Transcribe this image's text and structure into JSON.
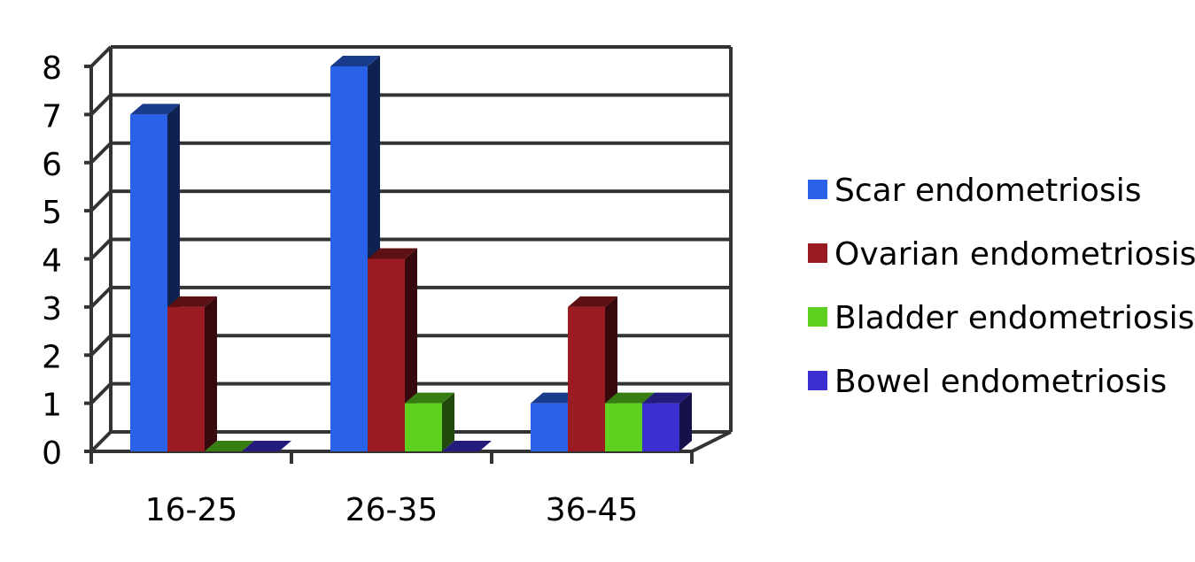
{
  "chart_data": {
    "type": "bar3d",
    "categories": [
      "16-25",
      "26-35",
      "36-45"
    ],
    "series": [
      {
        "name": "Scar endometriosis",
        "color": "#2962e8",
        "values": [
          7,
          8,
          1
        ]
      },
      {
        "name": "Ovarian endometriosis",
        "color": "#9b1b22",
        "values": [
          3,
          4,
          3
        ]
      },
      {
        "name": "Bladder endometriosis",
        "color": "#5ed020",
        "values": [
          0,
          1,
          1
        ]
      },
      {
        "name": "Bowel endometriosis",
        "color": "#3b2fd0",
        "values": [
          0,
          0,
          1
        ]
      }
    ],
    "ylim": [
      0,
      8
    ],
    "yticks": [
      0,
      1,
      2,
      3,
      4,
      5,
      6,
      7,
      8
    ],
    "grid": true,
    "legend": "right"
  }
}
